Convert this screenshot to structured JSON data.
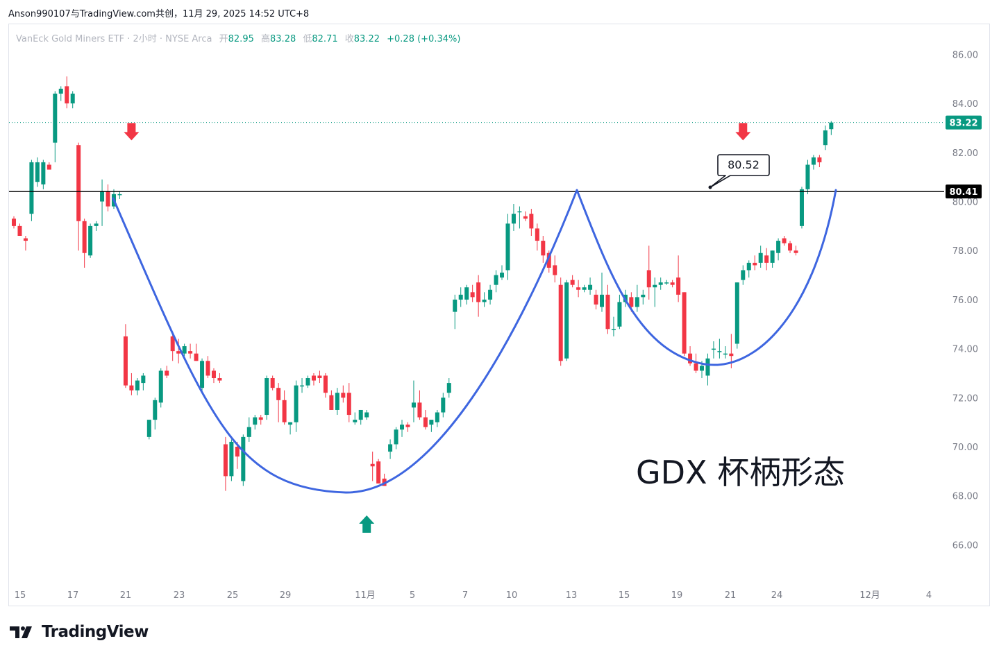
{
  "header": {
    "attribution": "Anson990107与TradingView.com共创，11月 29, 2025 14:52 UTC+8"
  },
  "legend": {
    "symbol": "VanEck Gold Miners ETF · 2小时 · NYSE Arca",
    "open_label": "开",
    "open": "82.95",
    "high_label": "高",
    "high": "83.28",
    "low_label": "低",
    "low": "82.71",
    "close_label": "收",
    "close": "83.22",
    "change": "+0.28 (+0.34%)"
  },
  "brand": {
    "name": "TradingView"
  },
  "colors": {
    "up": "#089981",
    "down": "#f23645",
    "curve": "#3e66e0",
    "line": "#000000"
  },
  "chart_data": {
    "type": "candlestick",
    "y_ticks": [
      "86.00",
      "84.00",
      "82.00",
      "80.00",
      "78.00",
      "76.00",
      "74.00",
      "72.00",
      "70.00",
      "68.00",
      "66.00"
    ],
    "x_ticks": [
      "15",
      "17",
      "21",
      "23",
      "25",
      "29",
      "11月",
      "5",
      "7",
      "10",
      "13",
      "15",
      "19",
      "21",
      "24",
      "12月",
      "4"
    ],
    "ylim": [
      64,
      87
    ],
    "last_price": 83.22,
    "last_price_label": "83.22",
    "horizontal_line": 80.41,
    "horizontal_line_label": "80.41",
    "callout_label": "80.52",
    "annotation": "GDX 杯柄形态",
    "arrows": [
      {
        "type": "down",
        "t": 20,
        "price": 83.2
      },
      {
        "type": "up",
        "t": 60,
        "price": 67.2
      },
      {
        "type": "down",
        "t": 124,
        "price": 83.2
      },
      {
        "type": "up",
        "t": 182,
        "price": 72.3
      }
    ],
    "candles": [
      [
        79.3,
        79.4,
        78.9,
        79.0
      ],
      [
        79.0,
        79.1,
        78.6,
        78.6
      ],
      [
        78.5,
        78.6,
        78.0,
        78.4
      ],
      [
        79.5,
        81.7,
        79.2,
        81.6
      ],
      [
        80.8,
        81.8,
        80.6,
        81.6
      ],
      [
        80.7,
        81.7,
        80.5,
        81.6
      ],
      [
        81.5,
        81.6,
        81.3,
        81.3
      ],
      [
        82.4,
        84.5,
        81.6,
        84.4
      ],
      [
        84.4,
        84.7,
        84.1,
        84.6
      ],
      [
        84.7,
        85.1,
        83.8,
        84.0
      ],
      [
        84.0,
        84.5,
        83.8,
        84.4
      ],
      [
        82.3,
        82.4,
        78.0,
        79.2
      ],
      [
        79.2,
        79.3,
        77.3,
        77.9
      ],
      [
        77.8,
        79.1,
        77.7,
        79.0
      ],
      [
        79.0,
        79.2,
        78.8,
        79.1
      ],
      [
        80.0,
        80.9,
        79.0,
        80.4
      ],
      [
        80.4,
        80.7,
        79.6,
        79.8
      ],
      [
        79.8,
        80.5,
        79.7,
        80.3
      ],
      [
        80.3,
        80.4,
        80.1,
        80.3
      ],
      [
        74.5,
        75.0,
        72.4,
        72.5
      ],
      [
        72.5,
        73.0,
        72.1,
        72.3
      ],
      [
        72.3,
        72.8,
        72.1,
        72.7
      ],
      [
        72.6,
        73.0,
        72.3,
        72.9
      ],
      [
        70.4,
        71.1,
        70.3,
        71.1
      ],
      [
        71.1,
        72.0,
        70.7,
        71.9
      ],
      [
        71.8,
        73.2,
        71.6,
        73.1
      ],
      [
        73.1,
        73.3,
        72.8,
        72.9
      ],
      [
        74.5,
        74.7,
        73.5,
        73.9
      ],
      [
        73.9,
        74.4,
        73.4,
        73.8
      ],
      [
        73.8,
        74.2,
        73.7,
        74.1
      ],
      [
        73.9,
        74.2,
        73.6,
        73.8
      ],
      [
        73.8,
        74.2,
        73.5,
        73.5
      ],
      [
        72.4,
        73.6,
        72.2,
        73.5
      ],
      [
        73.5,
        73.7,
        72.8,
        72.9
      ],
      [
        73.1,
        73.2,
        72.6,
        72.8
      ],
      [
        72.8,
        73.0,
        72.6,
        72.7
      ],
      [
        70.1,
        70.4,
        68.2,
        68.8
      ],
      [
        68.8,
        70.3,
        68.6,
        70.2
      ],
      [
        70.0,
        70.2,
        69.1,
        69.6
      ],
      [
        68.6,
        70.5,
        68.4,
        70.4
      ],
      [
        70.4,
        71.2,
        70.2,
        70.8
      ],
      [
        70.9,
        71.3,
        70.7,
        71.2
      ],
      [
        71.2,
        71.3,
        70.9,
        71.1
      ],
      [
        71.3,
        72.9,
        71.1,
        72.8
      ],
      [
        72.8,
        72.9,
        72.3,
        72.4
      ],
      [
        72.4,
        72.6,
        71.0,
        71.9
      ],
      [
        71.9,
        72.3,
        70.9,
        71.0
      ],
      [
        70.9,
        71.0,
        70.5,
        71.0
      ],
      [
        71.0,
        72.7,
        70.6,
        72.5
      ],
      [
        72.5,
        72.8,
        72.2,
        72.5
      ],
      [
        72.5,
        72.9,
        72.4,
        72.8
      ],
      [
        72.9,
        73.0,
        72.5,
        72.7
      ],
      [
        72.9,
        73.1,
        72.6,
        72.8
      ],
      [
        72.9,
        73.0,
        72.0,
        72.2
      ],
      [
        72.1,
        72.3,
        71.5,
        71.5
      ],
      [
        71.5,
        72.4,
        71.3,
        72.2
      ],
      [
        72.2,
        72.5,
        71.8,
        72.0
      ],
      [
        72.2,
        72.6,
        71.0,
        71.3
      ],
      [
        71.0,
        71.4,
        70.9,
        71.1
      ],
      [
        71.1,
        71.5,
        70.9,
        71.5
      ],
      [
        71.2,
        71.5,
        71.1,
        71.4
      ],
      [
        69.3,
        69.8,
        68.6,
        69.2
      ],
      [
        69.4,
        69.5,
        68.5,
        68.5
      ],
      [
        68.7,
        68.9,
        68.4,
        68.4
      ],
      [
        69.8,
        70.3,
        69.5,
        70.1
      ],
      [
        70.1,
        70.8,
        69.9,
        70.7
      ],
      [
        70.7,
        71.1,
        70.4,
        70.9
      ],
      [
        70.9,
        71.0,
        70.6,
        70.8
      ],
      [
        71.6,
        72.7,
        71.0,
        71.8
      ],
      [
        71.8,
        72.3,
        71.1,
        71.2
      ],
      [
        71.2,
        71.5,
        70.7,
        70.8
      ],
      [
        70.9,
        71.0,
        70.6,
        71.1
      ],
      [
        71.0,
        71.5,
        70.8,
        71.4
      ],
      [
        71.4,
        72.2,
        71.2,
        72.0
      ],
      [
        72.2,
        72.8,
        72.0,
        72.6
      ],
      [
        75.5,
        76.2,
        74.8,
        76.0
      ],
      [
        76.0,
        76.5,
        75.7,
        76.2
      ],
      [
        76.0,
        76.6,
        75.8,
        76.5
      ],
      [
        76.3,
        76.6,
        75.9,
        76.1
      ],
      [
        76.7,
        77.0,
        75.3,
        75.9
      ],
      [
        75.9,
        76.3,
        75.7,
        76.0
      ],
      [
        76.0,
        76.6,
        75.8,
        76.4
      ],
      [
        76.6,
        77.2,
        76.3,
        77.0
      ],
      [
        76.9,
        77.4,
        76.8,
        77.1
      ],
      [
        77.2,
        79.5,
        76.8,
        79.1
      ],
      [
        79.1,
        79.9,
        78.8,
        79.5
      ],
      [
        79.6,
        79.8,
        78.9,
        79.6
      ],
      [
        79.4,
        79.6,
        79.2,
        79.3
      ],
      [
        79.5,
        79.7,
        78.6,
        78.9
      ],
      [
        78.9,
        79.1,
        78.0,
        78.4
      ],
      [
        78.4,
        78.6,
        77.5,
        77.8
      ],
      [
        77.9,
        78.0,
        77.1,
        77.3
      ],
      [
        77.4,
        77.8,
        76.7,
        77.0
      ],
      [
        76.6,
        76.9,
        73.3,
        73.5
      ],
      [
        73.6,
        76.8,
        73.5,
        76.7
      ],
      [
        76.8,
        77.0,
        76.5,
        76.6
      ],
      [
        76.5,
        76.8,
        76.1,
        76.4
      ],
      [
        76.4,
        76.6,
        76.3,
        76.5
      ],
      [
        76.4,
        76.9,
        76.2,
        76.6
      ],
      [
        76.2,
        76.4,
        75.6,
        75.8
      ],
      [
        75.7,
        77.1,
        75.5,
        76.2
      ],
      [
        76.2,
        76.6,
        74.6,
        74.8
      ],
      [
        74.8,
        75.3,
        74.5,
        74.8
      ],
      [
        74.9,
        76.2,
        74.8,
        75.9
      ],
      [
        75.9,
        76.4,
        75.7,
        76.2
      ],
      [
        76.1,
        76.3,
        75.5,
        75.7
      ],
      [
        75.7,
        76.6,
        75.5,
        76.1
      ],
      [
        76.1,
        76.4,
        75.8,
        76.2
      ],
      [
        77.2,
        78.2,
        76.0,
        76.5
      ],
      [
        76.5,
        76.9,
        75.7,
        76.6
      ],
      [
        76.6,
        76.9,
        76.4,
        76.7
      ],
      [
        76.7,
        76.8,
        76.6,
        76.7
      ],
      [
        76.7,
        76.8,
        76.5,
        76.6
      ],
      [
        76.9,
        77.8,
        75.9,
        76.2
      ],
      [
        76.3,
        76.3,
        73.7,
        73.8
      ],
      [
        73.8,
        74.1,
        73.3,
        73.4
      ],
      [
        73.4,
        73.8,
        73.0,
        73.1
      ],
      [
        73.1,
        73.5,
        72.8,
        73.3
      ],
      [
        72.9,
        73.8,
        72.5,
        73.6
      ],
      [
        74.0,
        74.3,
        73.6,
        74.0
      ],
      [
        73.9,
        74.4,
        73.6,
        73.9
      ],
      [
        73.8,
        74.1,
        73.6,
        73.8
      ],
      [
        73.8,
        74.6,
        73.2,
        73.7
      ],
      [
        74.2,
        76.7,
        74.0,
        76.7
      ],
      [
        76.8,
        77.4,
        76.6,
        77.2
      ],
      [
        77.2,
        77.6,
        76.9,
        77.5
      ],
      [
        77.5,
        77.8,
        77.2,
        77.4
      ],
      [
        77.5,
        78.2,
        77.3,
        77.9
      ],
      [
        77.8,
        78.1,
        77.2,
        77.5
      ],
      [
        77.5,
        78.0,
        77.3,
        78.0
      ],
      [
        77.9,
        78.5,
        77.6,
        78.4
      ],
      [
        78.5,
        78.6,
        78.2,
        78.3
      ],
      [
        78.3,
        78.4,
        77.9,
        78.0
      ],
      [
        78.0,
        78.2,
        77.8,
        77.9
      ],
      [
        79.0,
        80.6,
        78.9,
        80.5
      ],
      [
        80.5,
        81.7,
        80.3,
        81.5
      ],
      [
        81.5,
        81.9,
        81.3,
        81.8
      ],
      [
        81.8,
        81.9,
        81.4,
        81.6
      ],
      [
        82.3,
        83.1,
        82.1,
        82.9
      ],
      [
        82.95,
        83.28,
        82.71,
        83.22
      ]
    ]
  }
}
